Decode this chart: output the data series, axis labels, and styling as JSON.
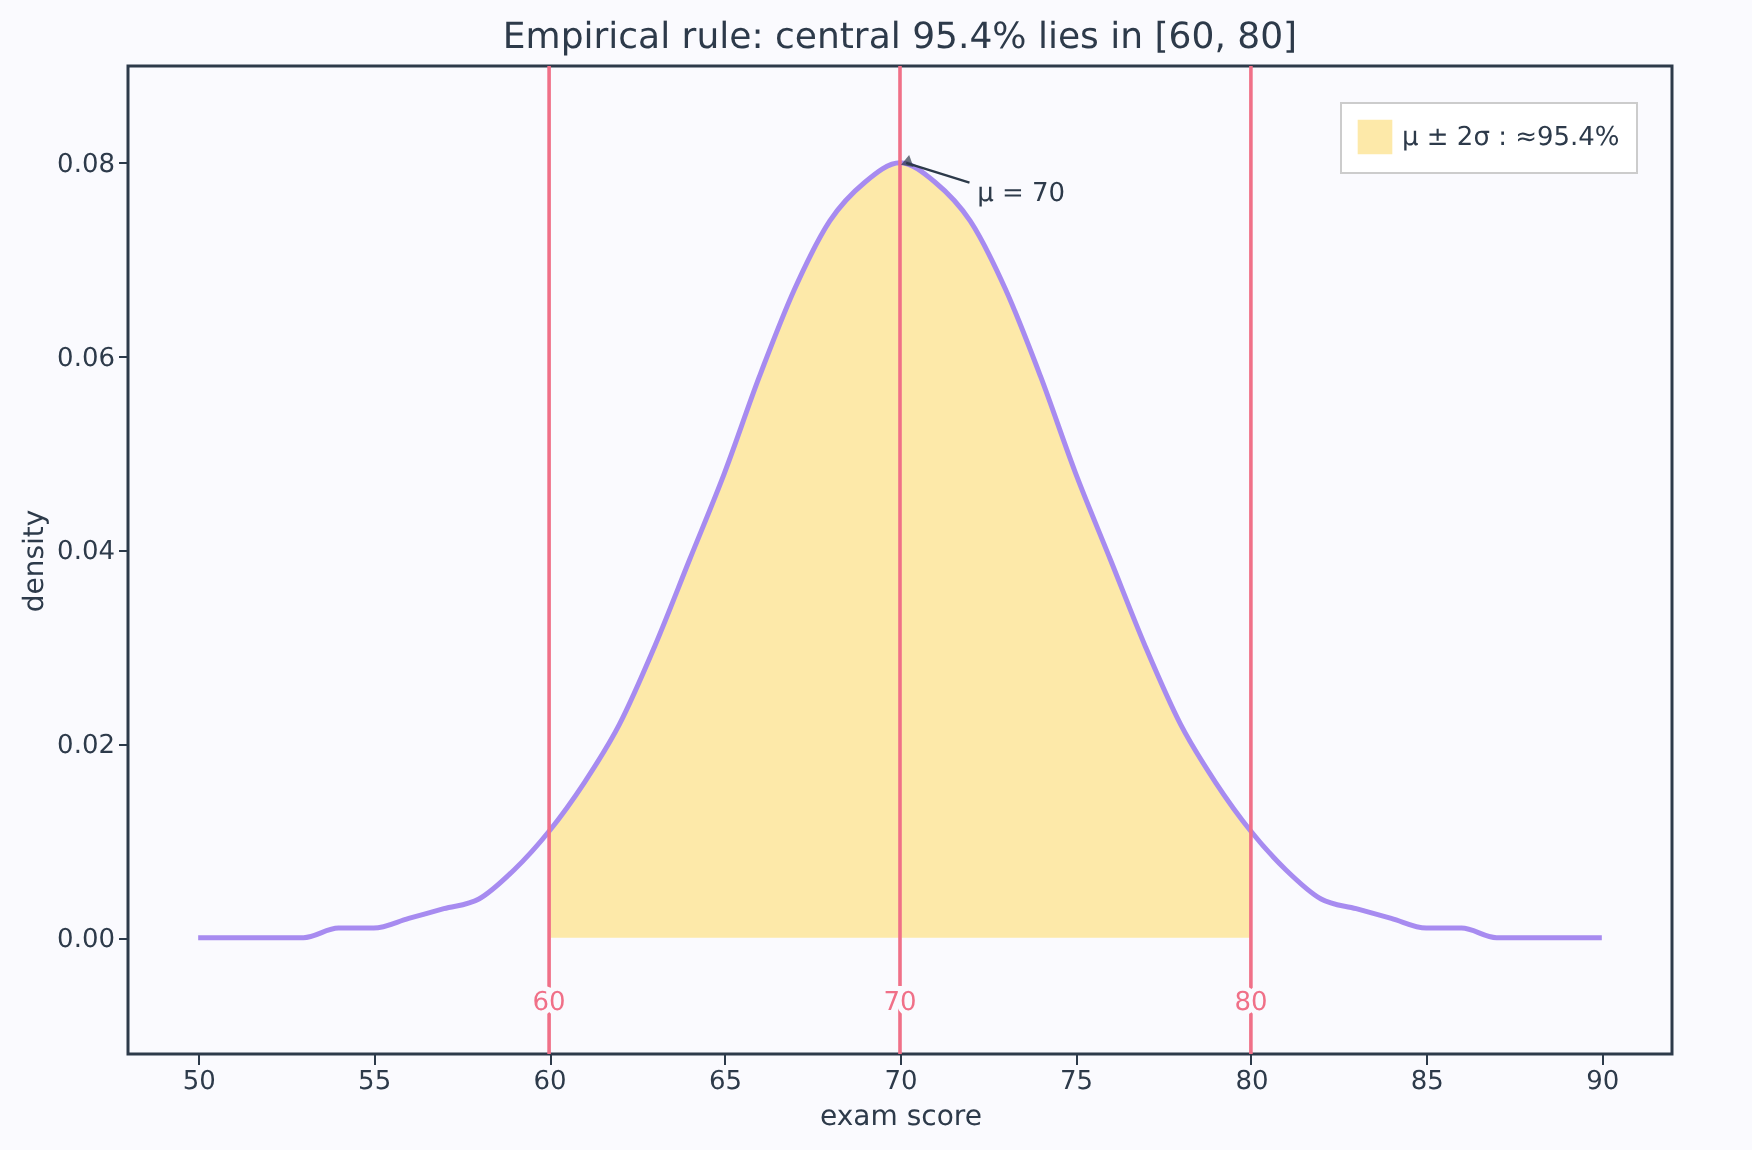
{
  "chart_data": {
    "type": "line",
    "title": "Empirical rule: central 95.4% lies in [60, 80]",
    "xlabel": "exam score",
    "ylabel": "density",
    "series": [
      {
        "color": "#a78bf0",
        "x": [
          50,
          51,
          52,
          53,
          54,
          55,
          56,
          57,
          58,
          59,
          60,
          61,
          62,
          63,
          64,
          65,
          66,
          67,
          68,
          69,
          70,
          71,
          72,
          73,
          74,
          75,
          76,
          77,
          78,
          79,
          80,
          81,
          82,
          83,
          84,
          85,
          86,
          87,
          88,
          89,
          90
        ],
        "values": [
          0.0,
          0.0,
          0.0,
          0.0,
          0.001,
          0.001,
          0.002,
          0.003,
          0.004,
          0.007,
          0.011,
          0.016,
          0.022,
          0.03,
          0.039,
          0.048,
          0.058,
          0.067,
          0.074,
          0.078,
          0.08,
          0.078,
          0.074,
          0.067,
          0.058,
          0.048,
          0.039,
          0.03,
          0.022,
          0.016,
          0.011,
          0.007,
          0.004,
          0.003,
          0.002,
          0.001,
          0.001,
          0.0,
          0.0,
          0.0,
          0.0
        ]
      },
      {
        "type": "area",
        "name": "μ ± 2σ : ≈95.4%",
        "color": "#fde9a9",
        "x": [
          60,
          61,
          62,
          63,
          64,
          65,
          66,
          67,
          68,
          69,
          70,
          71,
          72,
          73,
          74,
          75,
          76,
          77,
          78,
          79,
          80
        ],
        "values": [
          0.011,
          0.016,
          0.022,
          0.03,
          0.039,
          0.048,
          0.058,
          0.067,
          0.074,
          0.078,
          0.08,
          0.078,
          0.074,
          0.067,
          0.058,
          0.048,
          0.039,
          0.03,
          0.022,
          0.016,
          0.011
        ]
      }
    ],
    "xlim": [
      48,
      92
    ],
    "xticks": [
      50,
      55,
      60,
      65,
      70,
      75,
      80,
      85,
      90
    ],
    "ylim": [
      -0.012,
      0.09
    ],
    "yticks": [
      {
        "value": 0,
        "label": "0.00"
      },
      {
        "value": 0.02,
        "label": "0.02"
      },
      {
        "value": 0.04,
        "label": "0.04"
      },
      {
        "value": 0.06,
        "label": "0.06"
      },
      {
        "value": 0.08,
        "label": "0.08"
      }
    ],
    "ref_lines": [
      {
        "axis": "x",
        "value": 60,
        "label": "60",
        "color": "#f07088"
      },
      {
        "axis": "x",
        "value": 70,
        "label": "70",
        "color": "#f07088"
      },
      {
        "axis": "x",
        "value": 80,
        "label": "80",
        "color": "#f07088"
      }
    ],
    "annotations": [
      {
        "text": "μ = 70",
        "x": 70,
        "y": 0.08
      }
    ],
    "legend": "top right",
    "grid": false
  }
}
